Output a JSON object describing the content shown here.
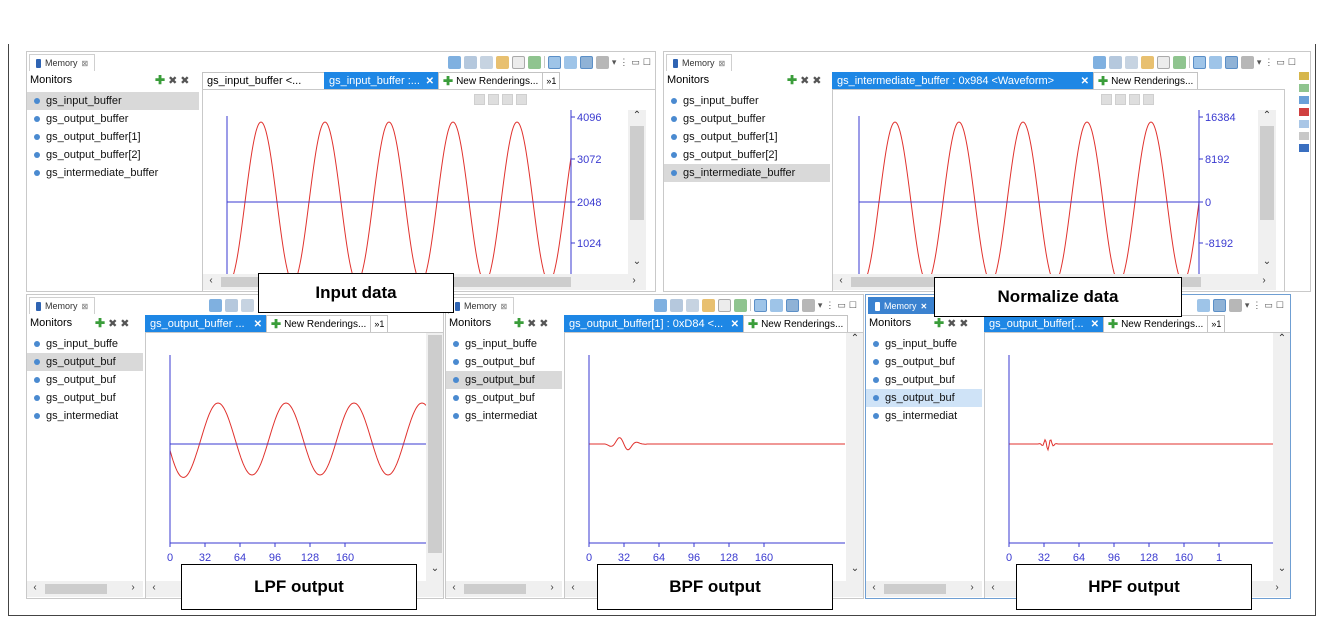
{
  "view_tab_label": "Memory",
  "monitors_label": "Monitors",
  "new_renderings_label": "New Renderings...",
  "more_tabs_label": "»1",
  "close_glyph": "✕",
  "top_left": {
    "monitors": [
      "gs_input_buffer",
      "gs_output_buffer",
      "gs_output_buffer[1]",
      "gs_output_buffer[2]",
      "gs_intermediate_buffer"
    ],
    "selected_index": 0,
    "tab_inactive": "gs_input_buffer <...",
    "tab_active": "gs_input_buffer :...",
    "y_ticks": [
      "4096",
      "3072",
      "2048",
      "1024"
    ]
  },
  "top_right": {
    "monitors": [
      "gs_input_buffer",
      "gs_output_buffer",
      "gs_output_buffer[1]",
      "gs_output_buffer[2]",
      "gs_intermediate_buffer"
    ],
    "selected_index": 4,
    "tab_active": "gs_intermediate_buffer : 0x984 <Waveform>",
    "y_ticks": [
      "16384",
      "8192",
      "0",
      "-8192"
    ]
  },
  "bottom_left": {
    "monitors": [
      "gs_input_buffe",
      "gs_output_buf",
      "gs_output_buf",
      "gs_output_buf",
      "gs_intermediat"
    ],
    "selected_index": 1,
    "tab_active": "gs_output_buffer ...",
    "x_ticks": [
      "0",
      "32",
      "64",
      "96",
      "128",
      "160"
    ]
  },
  "bottom_mid": {
    "monitors": [
      "gs_input_buffe",
      "gs_output_buf",
      "gs_output_buf",
      "gs_output_buf",
      "gs_intermediat"
    ],
    "selected_index": 2,
    "tab_active": "gs_output_buffer[1] : 0xD84 <...",
    "x_ticks": [
      "0",
      "32",
      "64",
      "96",
      "128",
      "160"
    ]
  },
  "bottom_right": {
    "monitors": [
      "gs_input_buffe",
      "gs_output_buf",
      "gs_output_buf",
      "gs_output_buf",
      "gs_intermediat"
    ],
    "selected_index": 3,
    "tab_active": "gs_output_buffer[...",
    "x_ticks": [
      "0",
      "32",
      "64",
      "96",
      "128",
      "160",
      "1"
    ]
  },
  "callouts": {
    "input": "Input data",
    "normalize": "Normalize data",
    "lpf": "LPF output",
    "bpf": "BPF output",
    "hpf": "HPF output"
  },
  "colors": {
    "signal": "#e0322e",
    "axis": "#3a3ad0",
    "accent": "#1e87e5"
  }
}
